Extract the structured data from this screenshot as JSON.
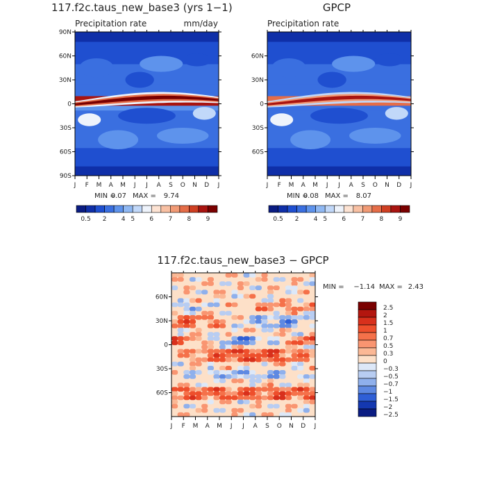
{
  "chart_data": [
    {
      "type": "heatmap",
      "title": "117.f2c.taus_new_base3 (yrs 1−1)",
      "subtitle_left": "Precipitation rate",
      "subtitle_right": "mm/day",
      "x_ticks": [
        "J",
        "F",
        "M",
        "A",
        "M",
        "J",
        "J",
        "A",
        "S",
        "O",
        "N",
        "D",
        "J"
      ],
      "y_ticks": [
        "90N",
        "60N",
        "30N",
        "0",
        "30S",
        "60S",
        "90S"
      ],
      "ylim": [
        -90,
        90
      ],
      "stats": {
        "min_label": "MIN =",
        "min": "0.07",
        "max_label": "MAX =",
        "max": "9.74"
      },
      "colorbar_labels": [
        "0.5",
        "2",
        "4",
        "5",
        "6",
        "7",
        "8",
        "9"
      ],
      "colorbar_colors": [
        "#0a1c82",
        "#0f2fa8",
        "#1f4fd0",
        "#3a6fe0",
        "#5e93ec",
        "#8fb8f3",
        "#c1d8f9",
        "#eef3fb",
        "#fde3d3",
        "#f8c0a3",
        "#f19a75",
        "#e56d48",
        "#cf3f22",
        "#a91410",
        "#7a0000"
      ],
      "bands": [
        [
          -90,
          -78,
          1.0
        ],
        [
          -78,
          -55,
          1.8
        ],
        [
          -55,
          -30,
          2.8
        ],
        [
          -30,
          -8,
          2.4
        ],
        [
          -8,
          -2,
          3.2
        ],
        [
          -2,
          10,
          8.5
        ],
        [
          10,
          25,
          3.0
        ],
        [
          25,
          50,
          2.6
        ],
        [
          50,
          78,
          2.0
        ],
        [
          78,
          90,
          1.0
        ]
      ]
    },
    {
      "type": "heatmap",
      "title": "GPCP",
      "subtitle_left": "Precipitation rate",
      "y_ticks": [
        "60N",
        "30N",
        "0",
        "30S",
        "60S"
      ],
      "x_ticks": [
        "J",
        "F",
        "M",
        "A",
        "M",
        "J",
        "J",
        "A",
        "S",
        "O",
        "N",
        "D",
        "J"
      ],
      "ylim": [
        -90,
        90
      ],
      "stats": {
        "min_label": "MIN =",
        "min": "0.08",
        "max_label": "MAX =",
        "max": "8.07"
      },
      "colorbar_labels": [
        "0.5",
        "2",
        "4",
        "5",
        "6",
        "7",
        "8",
        "9"
      ],
      "bands": [
        [
          -90,
          -78,
          0.8
        ],
        [
          -78,
          -55,
          1.6
        ],
        [
          -55,
          -30,
          2.5
        ],
        [
          -30,
          -8,
          2.2
        ],
        [
          -8,
          -2,
          3.0
        ],
        [
          -2,
          10,
          7.5
        ],
        [
          10,
          25,
          2.8
        ],
        [
          25,
          50,
          2.4
        ],
        [
          50,
          78,
          1.8
        ],
        [
          78,
          90,
          0.8
        ]
      ]
    },
    {
      "type": "heatmap",
      "title": "117.f2c.taus_new_base3 − GPCP",
      "y_ticks": [
        "60N",
        "30N",
        "0",
        "30S",
        "60S"
      ],
      "x_ticks": [
        "J",
        "F",
        "M",
        "A",
        "M",
        "J",
        "J",
        "A",
        "S",
        "O",
        "N",
        "D",
        "J"
      ],
      "ylim": [
        -90,
        90
      ],
      "stats": {
        "min_label": "MIN =",
        "min": "−1.14",
        "max_label": "MAX =",
        "max": "2.43"
      },
      "colorbar_labels": [
        "2.5",
        "2",
        "1.5",
        "1",
        "0.7",
        "0.5",
        "0.3",
        "0",
        "−0.3",
        "−0.5",
        "−0.7",
        "−1",
        "−1.5",
        "−2",
        "−2.5"
      ],
      "colorbar_colors": [
        "#7a0000",
        "#b3160f",
        "#d8301c",
        "#ee4f2c",
        "#f5714a",
        "#f99571",
        "#fbb895",
        "#fde0c8",
        "#dde8f8",
        "#b8cdf2",
        "#8fb0ec",
        "#5e89e2",
        "#2f5fd6",
        "#1438b0",
        "#0a1c82"
      ]
    }
  ]
}
